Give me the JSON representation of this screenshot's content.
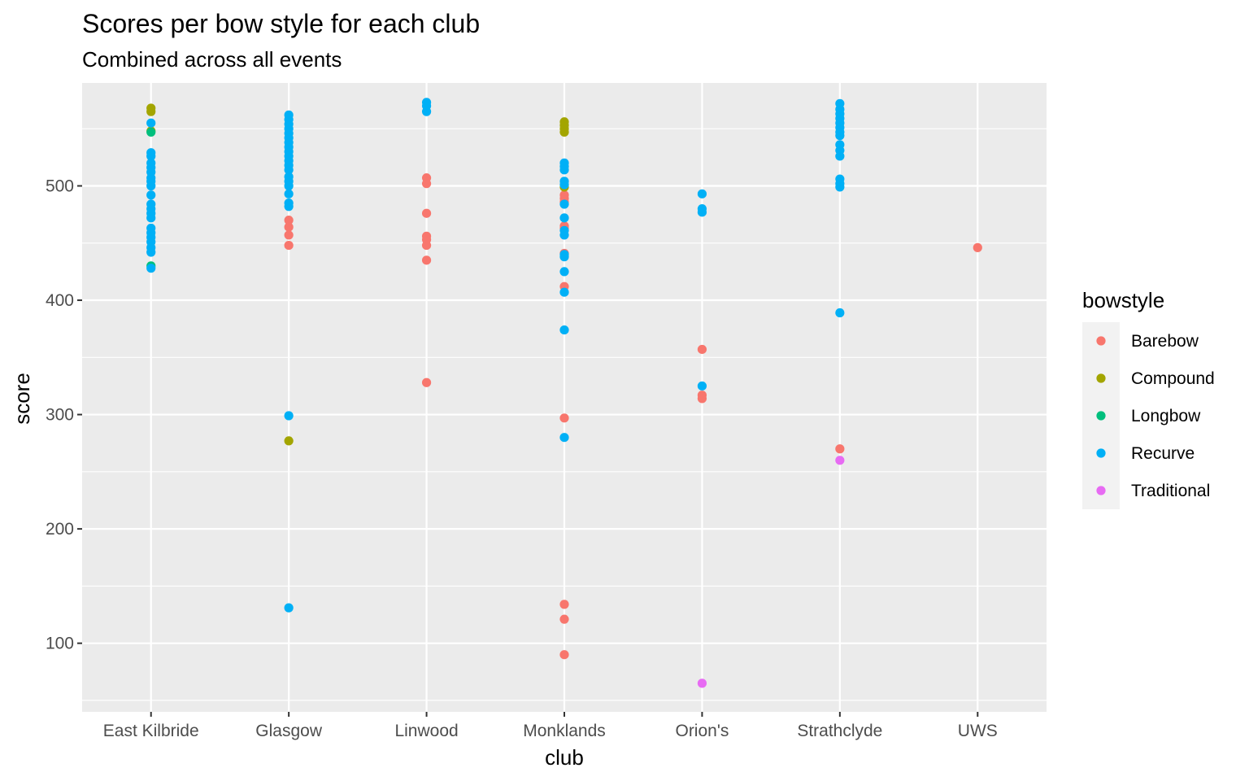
{
  "chart_data": {
    "type": "scatter",
    "title": "Scores per bow style for each club",
    "subtitle": "Combined across all events",
    "xlabel": "club",
    "ylabel": "score",
    "categories": [
      "East Kilbride",
      "Glasgow",
      "Linwood",
      "Monklands",
      "Orion's",
      "Strathclyde",
      "UWS"
    ],
    "ylim": [
      40,
      590
    ],
    "yticks": [
      100,
      200,
      300,
      400,
      500
    ],
    "grid": true,
    "legend": {
      "title": "bowstyle",
      "position": "right"
    },
    "series": [
      {
        "name": "Barebow",
        "color": "#F8766D",
        "points": [
          {
            "x": "Glasgow",
            "y": 470
          },
          {
            "x": "Glasgow",
            "y": 464
          },
          {
            "x": "Glasgow",
            "y": 457
          },
          {
            "x": "Glasgow",
            "y": 448
          },
          {
            "x": "Linwood",
            "y": 507
          },
          {
            "x": "Linwood",
            "y": 502
          },
          {
            "x": "Linwood",
            "y": 476
          },
          {
            "x": "Linwood",
            "y": 456
          },
          {
            "x": "Linwood",
            "y": 453
          },
          {
            "x": "Linwood",
            "y": 448
          },
          {
            "x": "Linwood",
            "y": 435
          },
          {
            "x": "Linwood",
            "y": 328
          },
          {
            "x": "Monklands",
            "y": 492
          },
          {
            "x": "Monklands",
            "y": 489
          },
          {
            "x": "Monklands",
            "y": 486
          },
          {
            "x": "Monklands",
            "y": 465
          },
          {
            "x": "Monklands",
            "y": 463
          },
          {
            "x": "Monklands",
            "y": 441
          },
          {
            "x": "Monklands",
            "y": 412
          },
          {
            "x": "Monklands",
            "y": 297
          },
          {
            "x": "Monklands",
            "y": 134
          },
          {
            "x": "Monklands",
            "y": 121
          },
          {
            "x": "Monklands",
            "y": 90
          },
          {
            "x": "Orion's",
            "y": 357
          },
          {
            "x": "Orion's",
            "y": 317
          },
          {
            "x": "Orion's",
            "y": 314
          },
          {
            "x": "Strathclyde",
            "y": 270
          },
          {
            "x": "UWS",
            "y": 446
          }
        ]
      },
      {
        "name": "Compound",
        "color": "#A3A500",
        "points": [
          {
            "x": "East Kilbride",
            "y": 568
          },
          {
            "x": "East Kilbride",
            "y": 565
          },
          {
            "x": "East Kilbride",
            "y": 548
          },
          {
            "x": "Glasgow",
            "y": 277
          },
          {
            "x": "Monklands",
            "y": 556
          },
          {
            "x": "Monklands",
            "y": 553
          },
          {
            "x": "Monklands",
            "y": 550
          },
          {
            "x": "Monklands",
            "y": 547
          },
          {
            "x": "Monklands",
            "y": 499
          }
        ]
      },
      {
        "name": "Longbow",
        "color": "#00BF7D",
        "points": [
          {
            "x": "East Kilbride",
            "y": 547
          },
          {
            "x": "East Kilbride",
            "y": 430
          }
        ]
      },
      {
        "name": "Recurve",
        "color": "#00B0F6",
        "points": [
          {
            "x": "East Kilbride",
            "y": 555
          },
          {
            "x": "East Kilbride",
            "y": 529
          },
          {
            "x": "East Kilbride",
            "y": 526
          },
          {
            "x": "East Kilbride",
            "y": 520
          },
          {
            "x": "East Kilbride",
            "y": 516
          },
          {
            "x": "East Kilbride",
            "y": 512
          },
          {
            "x": "East Kilbride",
            "y": 507
          },
          {
            "x": "East Kilbride",
            "y": 504
          },
          {
            "x": "East Kilbride",
            "y": 500
          },
          {
            "x": "East Kilbride",
            "y": 492
          },
          {
            "x": "East Kilbride",
            "y": 484
          },
          {
            "x": "East Kilbride",
            "y": 480
          },
          {
            "x": "East Kilbride",
            "y": 476
          },
          {
            "x": "East Kilbride",
            "y": 472
          },
          {
            "x": "East Kilbride",
            "y": 463
          },
          {
            "x": "East Kilbride",
            "y": 459
          },
          {
            "x": "East Kilbride",
            "y": 455
          },
          {
            "x": "East Kilbride",
            "y": 451
          },
          {
            "x": "East Kilbride",
            "y": 446
          },
          {
            "x": "East Kilbride",
            "y": 442
          },
          {
            "x": "East Kilbride",
            "y": 428
          },
          {
            "x": "Glasgow",
            "y": 562
          },
          {
            "x": "Glasgow",
            "y": 558
          },
          {
            "x": "Glasgow",
            "y": 554
          },
          {
            "x": "Glasgow",
            "y": 550
          },
          {
            "x": "Glasgow",
            "y": 546
          },
          {
            "x": "Glasgow",
            "y": 542
          },
          {
            "x": "Glasgow",
            "y": 538
          },
          {
            "x": "Glasgow",
            "y": 534
          },
          {
            "x": "Glasgow",
            "y": 530
          },
          {
            "x": "Glasgow",
            "y": 526
          },
          {
            "x": "Glasgow",
            "y": 522
          },
          {
            "x": "Glasgow",
            "y": 518
          },
          {
            "x": "Glasgow",
            "y": 514
          },
          {
            "x": "Glasgow",
            "y": 508
          },
          {
            "x": "Glasgow",
            "y": 504
          },
          {
            "x": "Glasgow",
            "y": 500
          },
          {
            "x": "Glasgow",
            "y": 493
          },
          {
            "x": "Glasgow",
            "y": 485
          },
          {
            "x": "Glasgow",
            "y": 482
          },
          {
            "x": "Glasgow",
            "y": 299
          },
          {
            "x": "Glasgow",
            "y": 131
          },
          {
            "x": "Linwood",
            "y": 573
          },
          {
            "x": "Linwood",
            "y": 570
          },
          {
            "x": "Linwood",
            "y": 565
          },
          {
            "x": "Monklands",
            "y": 520
          },
          {
            "x": "Monklands",
            "y": 517
          },
          {
            "x": "Monklands",
            "y": 514
          },
          {
            "x": "Monklands",
            "y": 504
          },
          {
            "x": "Monklands",
            "y": 501
          },
          {
            "x": "Monklands",
            "y": 484
          },
          {
            "x": "Monklands",
            "y": 472
          },
          {
            "x": "Monklands",
            "y": 461
          },
          {
            "x": "Monklands",
            "y": 457
          },
          {
            "x": "Monklands",
            "y": 440
          },
          {
            "x": "Monklands",
            "y": 438
          },
          {
            "x": "Monklands",
            "y": 425
          },
          {
            "x": "Monklands",
            "y": 407
          },
          {
            "x": "Monklands",
            "y": 374
          },
          {
            "x": "Monklands",
            "y": 280
          },
          {
            "x": "Orion's",
            "y": 493
          },
          {
            "x": "Orion's",
            "y": 480
          },
          {
            "x": "Orion's",
            "y": 477
          },
          {
            "x": "Orion's",
            "y": 325
          },
          {
            "x": "Strathclyde",
            "y": 572
          },
          {
            "x": "Strathclyde",
            "y": 567
          },
          {
            "x": "Strathclyde",
            "y": 563
          },
          {
            "x": "Strathclyde",
            "y": 559
          },
          {
            "x": "Strathclyde",
            "y": 555
          },
          {
            "x": "Strathclyde",
            "y": 551
          },
          {
            "x": "Strathclyde",
            "y": 547
          },
          {
            "x": "Strathclyde",
            "y": 544
          },
          {
            "x": "Strathclyde",
            "y": 536
          },
          {
            "x": "Strathclyde",
            "y": 531
          },
          {
            "x": "Strathclyde",
            "y": 526
          },
          {
            "x": "Strathclyde",
            "y": 506
          },
          {
            "x": "Strathclyde",
            "y": 502
          },
          {
            "x": "Strathclyde",
            "y": 499
          },
          {
            "x": "Strathclyde",
            "y": 389
          }
        ]
      },
      {
        "name": "Traditional",
        "color": "#E76BF3",
        "points": [
          {
            "x": "Orion's",
            "y": 65
          },
          {
            "x": "Strathclyde",
            "y": 260
          }
        ]
      }
    ]
  }
}
